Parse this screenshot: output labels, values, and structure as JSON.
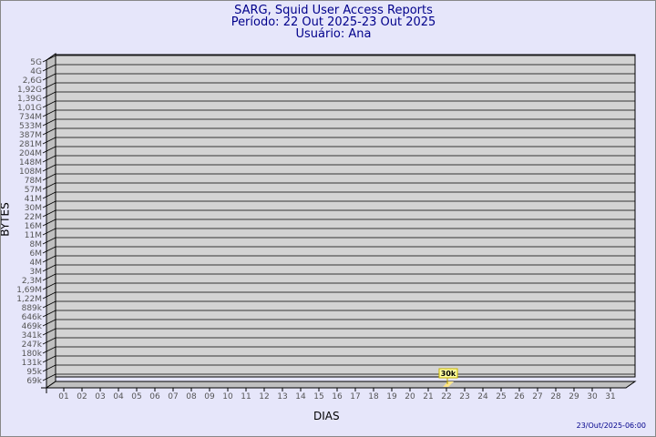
{
  "chart_data": {
    "type": "bar",
    "title": "SARG, Squid User Access Reports",
    "subtitle": [
      "Período: 22 Out 2025-23 Out 2025",
      "Usuário: Ana"
    ],
    "xlabel": "DIAS",
    "ylabel": "BYTES",
    "footer": "23/Out/2025-06:00",
    "yscale": "log",
    "y_ticks": [
      "5G",
      "4G",
      "2,6G",
      "1,92G",
      "1,39G",
      "1,01G",
      "734M",
      "533M",
      "387M",
      "281M",
      "204M",
      "148M",
      "108M",
      "78M",
      "57M",
      "41M",
      "30M",
      "22M",
      "16M",
      "11M",
      "8M",
      "6M",
      "4M",
      "3M",
      "2,3M",
      "1,69M",
      "1,22M",
      "889k",
      "646k",
      "469k",
      "341k",
      "247k",
      "180k",
      "131k",
      "95k",
      "69k"
    ],
    "categories": [
      "01",
      "02",
      "03",
      "04",
      "05",
      "06",
      "07",
      "08",
      "09",
      "10",
      "11",
      "12",
      "13",
      "14",
      "15",
      "16",
      "17",
      "18",
      "19",
      "20",
      "21",
      "22",
      "23",
      "24",
      "25",
      "26",
      "27",
      "28",
      "29",
      "30",
      "31"
    ],
    "bars": [
      {
        "category": "22",
        "value": 30000,
        "label": "30k"
      }
    ],
    "grid": true,
    "colors": {
      "bar": "#ffe68a",
      "wall": "#d3d3d3",
      "side": "#c0c0c0",
      "title": "#00008b",
      "background": "#e6e6fa"
    }
  }
}
